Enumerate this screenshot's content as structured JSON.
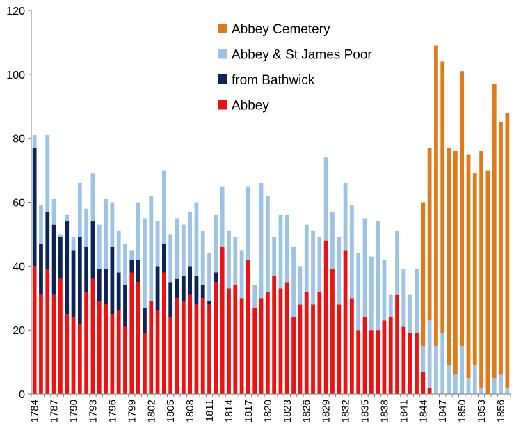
{
  "chart_data": {
    "type": "bar",
    "stacked": true,
    "title": "",
    "xlabel": "",
    "ylabel": "",
    "ylim": [
      0,
      120
    ],
    "yticks": [
      0,
      20,
      40,
      60,
      80,
      100,
      120
    ],
    "grid": false,
    "legend_position": "top-right",
    "categories": [
      "1784",
      "1785",
      "1786",
      "1787",
      "1788",
      "1789",
      "1790",
      "1791",
      "1792",
      "1793",
      "1794",
      "1795",
      "1796",
      "1797",
      "1798",
      "1799",
      "1800",
      "1801",
      "1802",
      "1803",
      "1804",
      "1805",
      "1806",
      "1807",
      "1808",
      "1809",
      "1810",
      "1811",
      "1812",
      "1813",
      "1814",
      "1815",
      "1816",
      "1817",
      "1818",
      "1819",
      "1820",
      "1821",
      "1822",
      "1823",
      "1824",
      "1825",
      "1826",
      "1827",
      "1828",
      "1829",
      "1830",
      "1831",
      "1832",
      "1833",
      "1834",
      "1835",
      "1836",
      "1837",
      "1838",
      "1839",
      "1840",
      "1841",
      "1842",
      "1843",
      "1844",
      "1845",
      "1846",
      "1847",
      "1848",
      "1849",
      "1850",
      "1851",
      "1852",
      "1853",
      "1854",
      "1855",
      "1856",
      "1857"
    ],
    "x_tick_labels": [
      "1784",
      "1787",
      "1790",
      "1793",
      "1796",
      "1799",
      "1802",
      "1805",
      "1808",
      "1811",
      "1814",
      "1817",
      "1820",
      "1823",
      "1826",
      "1829",
      "1832",
      "1835",
      "1838",
      "1841",
      "1844",
      "1847",
      "1850",
      "1853",
      "1856"
    ],
    "series": [
      {
        "name": "Abbey",
        "color": "#ee1111",
        "values": [
          40,
          31,
          39,
          31,
          36,
          25,
          24,
          22,
          32,
          36,
          29,
          28,
          25,
          26,
          21,
          38,
          35,
          19,
          29,
          26,
          38,
          24,
          30,
          29,
          31,
          28,
          30,
          28,
          35,
          46,
          33,
          34,
          30,
          42,
          27,
          30,
          32,
          37,
          33,
          35,
          24,
          28,
          32,
          28,
          32,
          48,
          39,
          28,
          45,
          30,
          20,
          24,
          20,
          20,
          23,
          24,
          31,
          21,
          19,
          19,
          7,
          2,
          0,
          0,
          0,
          0,
          0,
          0,
          0,
          0,
          0,
          0,
          0,
          0
        ]
      },
      {
        "name": "from Bathwick",
        "color": "#0d2458",
        "values": [
          37,
          16,
          18,
          22,
          13,
          29,
          21,
          27,
          14,
          18,
          10,
          11,
          21,
          12,
          13,
          4,
          7,
          8,
          0,
          14,
          9,
          11,
          6,
          8,
          9,
          9,
          4,
          1,
          3,
          0,
          0,
          0,
          0,
          0,
          0,
          0,
          0,
          0,
          0,
          0,
          0,
          0,
          0,
          0,
          0,
          0,
          0,
          0,
          0,
          0,
          0,
          0,
          0,
          0,
          0,
          0,
          0,
          0,
          0,
          0,
          0,
          0,
          0,
          0,
          0,
          0,
          0,
          0,
          0,
          0,
          0,
          0,
          0,
          0
        ]
      },
      {
        "name": "Abbey & St James Poor",
        "color": "#9dc3e6",
        "values": [
          4,
          12,
          24,
          8,
          1,
          2,
          4,
          17,
          12,
          15,
          14,
          22,
          14,
          13,
          13,
          3,
          18,
          28,
          33,
          14,
          23,
          15,
          19,
          16,
          17,
          23,
          17,
          15,
          18,
          19,
          18,
          15,
          15,
          23,
          7,
          36,
          30,
          12,
          23,
          21,
          22,
          12,
          21,
          23,
          17,
          26,
          18,
          21,
          21,
          29,
          24,
          31,
          23,
          34,
          19,
          7,
          20,
          18,
          12,
          20,
          8,
          21,
          15,
          19,
          9,
          6,
          15,
          5,
          9,
          2,
          0,
          5,
          6,
          2
        ]
      },
      {
        "name": "Abbey Cemetery",
        "color": "#e07b1c",
        "values": [
          0,
          0,
          0,
          0,
          0,
          0,
          0,
          0,
          0,
          0,
          0,
          0,
          0,
          0,
          0,
          0,
          0,
          0,
          0,
          0,
          0,
          0,
          0,
          0,
          0,
          0,
          0,
          0,
          0,
          0,
          0,
          0,
          0,
          0,
          0,
          0,
          0,
          0,
          0,
          0,
          0,
          0,
          0,
          0,
          0,
          0,
          0,
          0,
          0,
          0,
          0,
          0,
          0,
          0,
          0,
          0,
          0,
          0,
          0,
          0,
          45,
          54,
          94,
          85,
          68,
          70,
          86,
          70,
          60,
          74,
          70,
          92,
          79,
          86
        ]
      }
    ],
    "legend": [
      {
        "label": "Abbey Cemetery",
        "color": "#e07b1c"
      },
      {
        "label": "Abbey & St James Poor",
        "color": "#9dc3e6"
      },
      {
        "label": "from Bathwick",
        "color": "#0d2458"
      },
      {
        "label": "Abbey",
        "color": "#ee1111"
      }
    ]
  }
}
